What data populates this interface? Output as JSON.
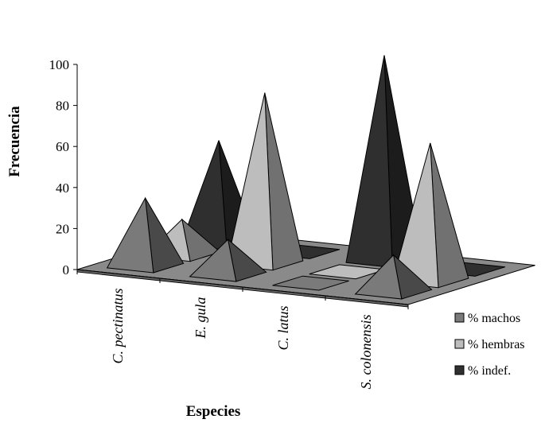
{
  "chart_data": {
    "type": "bar",
    "style": "3d-pyramid",
    "categories": [
      "C. pectinatus",
      "E. gula",
      "C. latus",
      "S. colonensis"
    ],
    "series": [
      {
        "name": "% machos",
        "values": [
          33,
          17,
          0,
          18
        ],
        "color": "#7a7a7a"
      },
      {
        "name": "% hembras",
        "values": [
          17,
          83,
          0,
          67
        ],
        "color": "#bdbdbd"
      },
      {
        "name": "% indef.",
        "values": [
          50,
          0,
          100,
          0
        ],
        "color": "#2f2f2f"
      }
    ],
    "xlabel": "Especies",
    "ylabel": "Frecuencia",
    "ylim": [
      0,
      100
    ],
    "yticks": [
      "0",
      "20",
      "40",
      "60",
      "80",
      "100"
    ],
    "legend_position": "right",
    "floor_color": "#8a8a8a"
  }
}
